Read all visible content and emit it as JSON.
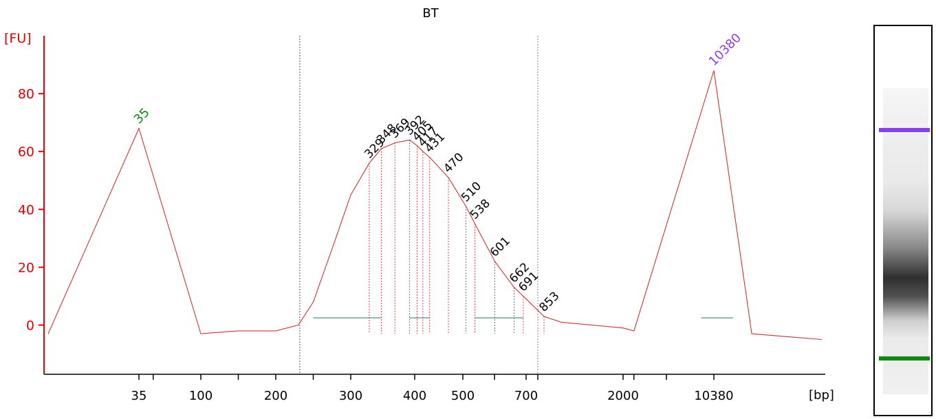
{
  "chart_data": {
    "type": "line",
    "title": "BT",
    "ylabel": "[FU]",
    "xlabel": "[bp]",
    "ylim": [
      -17,
      100
    ],
    "yticks": [
      0,
      20,
      40,
      60,
      80
    ],
    "x_tick_labels": [
      "35",
      "100",
      "200",
      "300",
      "400",
      "500",
      "700",
      "2000",
      "10380"
    ],
    "series": [
      {
        "x": [
          15,
          35,
          100,
          150,
          200,
          230,
          250,
          280,
          300,
          329,
          348,
          369,
          392,
          405,
          417,
          431,
          470,
          510,
          538,
          601,
          662,
          691,
          853,
          1000,
          2000,
          3000,
          10380,
          12000,
          15000
        ],
        "y": [
          -3,
          68,
          -3,
          -2,
          -2,
          0,
          8,
          30,
          45,
          56,
          61,
          63,
          64,
          62,
          60,
          58,
          51,
          41,
          35,
          22,
          13,
          10,
          3,
          1,
          -1,
          -2,
          88,
          -3,
          -5
        ]
      }
    ],
    "peaks": [
      {
        "label": "35",
        "x": 35,
        "y": 68,
        "marker": "lower"
      },
      {
        "label": "10380",
        "x": 10380,
        "y": 88,
        "marker": "upper"
      },
      {
        "label": "329",
        "x": 329,
        "y": 56
      },
      {
        "label": "348",
        "x": 348,
        "y": 61
      },
      {
        "label": "369",
        "x": 369,
        "y": 63
      },
      {
        "label": "392",
        "x": 392,
        "y": 64
      },
      {
        "label": "405",
        "x": 405,
        "y": 62
      },
      {
        "label": "417",
        "x": 417,
        "y": 60
      },
      {
        "label": "431",
        "x": 431,
        "y": 58
      },
      {
        "label": "470",
        "x": 470,
        "y": 51
      },
      {
        "label": "510",
        "x": 510,
        "y": 41
      },
      {
        "label": "538",
        "x": 538,
        "y": 35
      },
      {
        "label": "601",
        "x": 601,
        "y": 22
      },
      {
        "label": "662",
        "x": 662,
        "y": 13
      },
      {
        "label": "691",
        "x": 691,
        "y": 10
      },
      {
        "label": "853",
        "x": 853,
        "y": 3
      }
    ],
    "region_lines_bp": [
      232,
      800
    ],
    "grid": false,
    "colors": {
      "trace": "#cc3333",
      "axis": "#e60000",
      "lower_marker": "#118811",
      "upper_marker": "#8a3cf0",
      "baseline": "#4a8f8f",
      "region_line_left": "#555555",
      "region_line_right": "#7777cc"
    }
  },
  "gel": {
    "bands": [
      {
        "name": "upper-marker",
        "color": "#8a3cf0"
      },
      {
        "name": "lower-marker",
        "color": "#118811"
      }
    ]
  }
}
